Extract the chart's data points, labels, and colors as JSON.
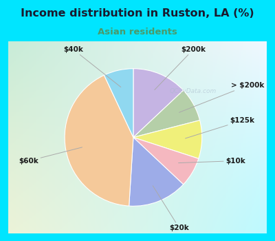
{
  "title": "Income distribution in Ruston, LA (%)",
  "subtitle": "Asian residents",
  "title_color": "#1a1a2e",
  "subtitle_color": "#4a9a6a",
  "background_color": "#00e5ff",
  "chart_bg_left": "#c8ecd8",
  "chart_bg_right": "#f0f8ff",
  "labels": [
    "$200k",
    "> $200k",
    "$125k",
    "$10k",
    "$20k",
    "$60k",
    "$40k"
  ],
  "values": [
    13,
    8,
    9,
    7,
    14,
    42,
    7
  ],
  "colors": [
    "#c5b4e3",
    "#b5cfa8",
    "#f0f07a",
    "#f5b8c0",
    "#9dace8",
    "#f5c99a",
    "#90d8f0"
  ],
  "wedge_edge_color": "white",
  "wedge_edge_width": 0.8
}
